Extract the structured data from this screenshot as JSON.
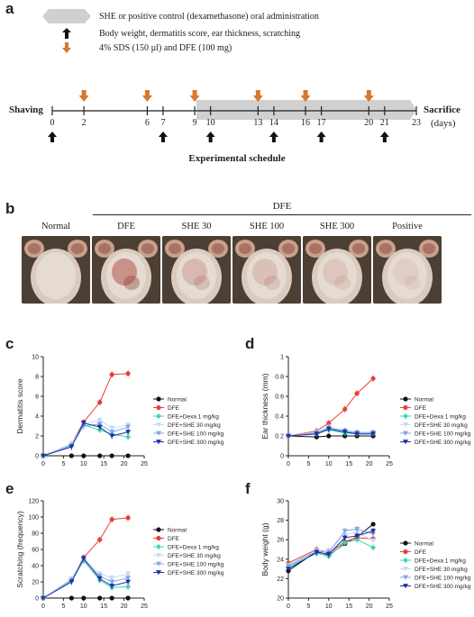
{
  "panel_a": {
    "letter": "a",
    "legend": [
      {
        "icon": "gray-hexagon-icon",
        "text": "SHE or positive control (dexamethasone) oral administration"
      },
      {
        "icon": "black-up-arrow-icon",
        "text": "Body weight, dermatitis score, ear thickness, scratching"
      },
      {
        "icon": "orange-down-arrow-icon",
        "text": "4% SDS (150 µl) and DFE (100 mg)"
      }
    ],
    "shaving_label": "Shaving",
    "sacrifice_label": "Sacrifice",
    "days_label": "(days)",
    "day_ticks": [
      "0",
      "2",
      "6",
      "7",
      "9",
      "10",
      "13",
      "14",
      "16",
      "17",
      "20",
      "21",
      "23"
    ],
    "orange_days": [
      "2",
      "6",
      "9",
      "13",
      "16",
      "20"
    ],
    "black_days": [
      "0",
      "7",
      "10",
      "14",
      "17",
      "21"
    ],
    "caption": "Experimental schedule"
  },
  "panel_b": {
    "letter": "b",
    "group_label": "DFE",
    "photos": [
      "Normal",
      "DFE",
      "SHE 30",
      "SHE 100",
      "SHE 300",
      "Positive"
    ]
  },
  "colors": {
    "normal": "#111111",
    "dfe": "#e8403a",
    "dexa": "#3fd9a6",
    "she30": "#c3dbf5",
    "she100": "#7fa8e8",
    "she300": "#1f2fa8",
    "orange": "#d9772b",
    "hexagon": "#d0d0d0"
  },
  "legend_series": [
    "Normal",
    "DFE",
    "DFE+Dexa 1 mg/kg",
    "DFE+SHE 30 mg/kg",
    "DFE+SHE 100 mg/kg",
    "DFE+SHE 300 mg/kg"
  ],
  "chart_data": [
    {
      "letter": "c",
      "type": "line",
      "ylabel": "Dermatitis score",
      "x": [
        0,
        7,
        10,
        14,
        17,
        21
      ],
      "xticks": [
        0,
        5,
        10,
        15,
        20,
        25
      ],
      "yticks": [
        0,
        2,
        4,
        6,
        8,
        10
      ],
      "xlim": [
        0,
        25
      ],
      "ylim": [
        0,
        10
      ],
      "series": [
        {
          "name": "Normal",
          "values": [
            0,
            0,
            0,
            0,
            0,
            0
          ]
        },
        {
          "name": "DFE",
          "values": [
            0,
            1.2,
            3.4,
            5.4,
            8.2,
            8.3
          ]
        },
        {
          "name": "DFE+Dexa 1 mg/kg",
          "values": [
            0,
            1.1,
            3.1,
            2.6,
            2.2,
            1.9
          ]
        },
        {
          "name": "DFE+SHE 30 mg/kg",
          "values": [
            0,
            1.2,
            3.2,
            3.6,
            2.8,
            3.1
          ]
        },
        {
          "name": "DFE+SHE 100 mg/kg",
          "values": [
            0,
            1.0,
            3.0,
            3.2,
            2.4,
            2.9
          ]
        },
        {
          "name": "DFE+SHE 300 mg/kg",
          "values": [
            0,
            0.9,
            3.3,
            2.9,
            2.0,
            2.4
          ]
        }
      ]
    },
    {
      "letter": "d",
      "type": "line",
      "ylabel": "Ear thickness (mm)",
      "x": [
        0,
        7,
        10,
        14,
        17,
        21
      ],
      "xticks": [
        0,
        5,
        10,
        15,
        20,
        25
      ],
      "yticks": [
        0.0,
        0.2,
        0.4,
        0.6,
        0.8,
        1.0
      ],
      "xlim": [
        0,
        25
      ],
      "ylim": [
        0,
        1.0
      ],
      "series": [
        {
          "name": "Normal",
          "values": [
            0.2,
            0.19,
            0.2,
            0.2,
            0.2,
            0.2
          ]
        },
        {
          "name": "DFE",
          "values": [
            0.2,
            0.25,
            0.33,
            0.47,
            0.63,
            0.78
          ]
        },
        {
          "name": "DFE+Dexa 1 mg/kg",
          "values": [
            0.2,
            0.22,
            0.26,
            0.23,
            0.22,
            0.22
          ]
        },
        {
          "name": "DFE+SHE 30 mg/kg",
          "values": [
            0.2,
            0.24,
            0.29,
            0.26,
            0.24,
            0.24
          ]
        },
        {
          "name": "DFE+SHE 100 mg/kg",
          "values": [
            0.2,
            0.23,
            0.28,
            0.25,
            0.23,
            0.23
          ]
        },
        {
          "name": "DFE+SHE 300 mg/kg",
          "values": [
            0.2,
            0.22,
            0.27,
            0.24,
            0.22,
            0.22
          ]
        }
      ]
    },
    {
      "letter": "e",
      "type": "line",
      "ylabel": "Scratching (frequency)",
      "x": [
        0,
        7,
        10,
        14,
        17,
        21
      ],
      "xticks": [
        0,
        5,
        10,
        15,
        20,
        25
      ],
      "yticks": [
        0,
        20,
        40,
        60,
        80,
        100,
        120
      ],
      "xlim": [
        0,
        25
      ],
      "ylim": [
        0,
        120
      ],
      "series": [
        {
          "name": "Normal",
          "values": [
            0,
            0,
            0,
            0,
            0,
            0
          ]
        },
        {
          "name": "DFE",
          "values": [
            0,
            22,
            50,
            72,
            97,
            99
          ]
        },
        {
          "name": "DFE+Dexa 1 mg/kg",
          "values": [
            0,
            21,
            46,
            22,
            13,
            14
          ]
        },
        {
          "name": "DFE+SHE 30 mg/kg",
          "values": [
            0,
            24,
            48,
            30,
            25,
            30
          ]
        },
        {
          "name": "DFE+SHE 100 mg/kg",
          "values": [
            0,
            22,
            47,
            27,
            20,
            25
          ]
        },
        {
          "name": "DFE+SHE 300 mg/kg",
          "values": [
            0,
            20,
            49,
            24,
            15,
            20
          ]
        }
      ]
    },
    {
      "letter": "f",
      "type": "line",
      "ylabel": "Body weight (g)",
      "x": [
        0,
        7,
        10,
        14,
        17,
        21
      ],
      "xticks": [
        0,
        5,
        10,
        15,
        20,
        25
      ],
      "yticks": [
        20,
        22,
        24,
        26,
        28,
        30
      ],
      "xlim": [
        0,
        25
      ],
      "ylim": [
        20,
        30
      ],
      "series": [
        {
          "name": "Normal",
          "values": [
            22.8,
            24.8,
            24.4,
            25.6,
            26.3,
            27.6
          ]
        },
        {
          "name": "DFE",
          "values": [
            23.6,
            25.0,
            24.6,
            25.8,
            26.2,
            26.1
          ]
        },
        {
          "name": "DFE+Dexa 1 mg/kg",
          "values": [
            23.2,
            24.6,
            24.3,
            25.7,
            26.0,
            25.2
          ]
        },
        {
          "name": "DFE+SHE 30 mg/kg",
          "values": [
            23.4,
            24.9,
            24.9,
            26.5,
            26.8,
            25.9
          ]
        },
        {
          "name": "DFE+SHE 100 mg/kg",
          "values": [
            23.3,
            24.8,
            24.7,
            26.9,
            27.1,
            26.6
          ]
        },
        {
          "name": "DFE+SHE 300 mg/kg",
          "values": [
            23.0,
            24.7,
            24.5,
            26.2,
            26.4,
            26.9
          ]
        }
      ]
    }
  ]
}
